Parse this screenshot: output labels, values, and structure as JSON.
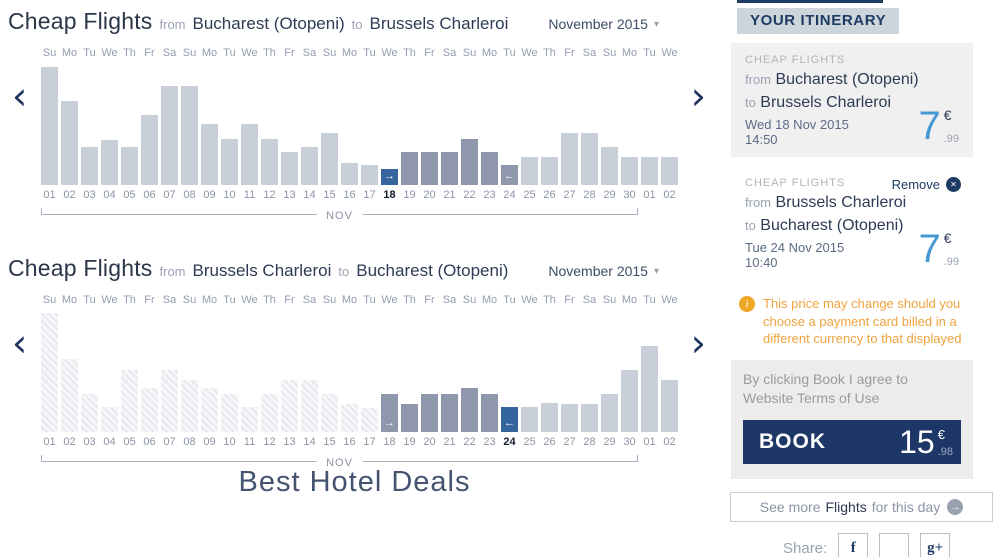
{
  "icons": {
    "prev_chevron": "‹",
    "next_chevron": "›",
    "dropdown_caret": "▾",
    "remove_x": "✕",
    "info_i": "i",
    "arrow_right": "→",
    "arrow_left": "←",
    "facebook_f": "f",
    "google_plus": "g+",
    "see_more_arrow": "→"
  },
  "colors": {
    "bar_light": "#c9cfd9",
    "bar_range": "#8f97ac",
    "bar_selected": "#36649e",
    "price_blue": "#4599d4",
    "navy": "#1d3b63",
    "book_button_bg": "#1d3767",
    "warning_orange": "#f0a33f"
  },
  "chart_data": [
    {
      "type": "bar",
      "header": {
        "title": "Cheap Flights",
        "from_label": "from",
        "from": "Bucharest (Otopeni)",
        "to_label": "to",
        "to": "Brussels Charleroi",
        "month": "November 2015"
      },
      "month_bracket": "NOV",
      "xlabel": "",
      "ylabel": "",
      "value_unit": "relative bar height in px (no numeric price axis shown)",
      "day_labels": [
        "Su",
        "Mo",
        "Tu",
        "We",
        "Th",
        "Fr",
        "Sa",
        "Su",
        "Mo",
        "Tu",
        "We",
        "Th",
        "Fr",
        "Sa",
        "Su",
        "Mo",
        "Tu",
        "We",
        "Th",
        "Fr",
        "Sa",
        "Su",
        "Mo",
        "Tu",
        "We",
        "Th",
        "Fr",
        "Sa",
        "Su",
        "Mo",
        "Tu",
        "We"
      ],
      "categories": [
        "01",
        "02",
        "03",
        "04",
        "05",
        "06",
        "07",
        "08",
        "09",
        "10",
        "11",
        "12",
        "13",
        "14",
        "15",
        "16",
        "17",
        "18",
        "19",
        "20",
        "21",
        "22",
        "23",
        "24",
        "25",
        "26",
        "27",
        "28",
        "29",
        "30",
        "01",
        "02"
      ],
      "values": [
        118,
        84,
        38,
        45,
        38,
        70,
        99,
        99,
        61,
        46,
        61,
        46,
        33,
        38,
        52,
        22,
        20,
        16,
        33,
        33,
        33,
        46,
        33,
        20,
        28,
        28,
        52,
        52,
        38,
        28,
        28,
        28
      ],
      "states": [
        "L",
        "L",
        "L",
        "L",
        "L",
        "L",
        "L",
        "L",
        "L",
        "L",
        "L",
        "L",
        "L",
        "L",
        "L",
        "L",
        "L",
        "S",
        "R",
        "R",
        "R",
        "R",
        "R",
        "R",
        "L",
        "L",
        "L",
        "L",
        "L",
        "L",
        "L",
        "L"
      ],
      "arrows": {
        "17": "right",
        "23": "left"
      },
      "bold_index": 17,
      "selected_departure_date": "18"
    },
    {
      "type": "bar",
      "header": {
        "title": "Cheap Flights",
        "from_label": "from",
        "from": "Brussels Charleroi",
        "to_label": "to",
        "to": "Bucharest (Otopeni)",
        "month": "November 2015"
      },
      "month_bracket": "NOV",
      "xlabel": "",
      "ylabel": "",
      "value_unit": "relative bar height in px (no numeric price axis shown)",
      "day_labels": [
        "Su",
        "Mo",
        "Tu",
        "We",
        "Th",
        "Fr",
        "Sa",
        "Su",
        "Mo",
        "Tu",
        "We",
        "Th",
        "Fr",
        "Sa",
        "Su",
        "Mo",
        "Tu",
        "We",
        "Th",
        "Fr",
        "Sa",
        "Su",
        "Mo",
        "Tu",
        "We",
        "Th",
        "Fr",
        "Sa",
        "Su",
        "Mo",
        "Tu",
        "We"
      ],
      "categories": [
        "01",
        "02",
        "03",
        "04",
        "05",
        "06",
        "07",
        "08",
        "09",
        "10",
        "11",
        "12",
        "13",
        "14",
        "15",
        "16",
        "17",
        "18",
        "19",
        "20",
        "21",
        "22",
        "23",
        "24",
        "25",
        "26",
        "27",
        "28",
        "29",
        "30",
        "01",
        "02"
      ],
      "values": [
        119,
        73,
        38,
        25,
        62,
        44,
        62,
        52,
        44,
        38,
        25,
        38,
        52,
        52,
        38,
        28,
        24,
        38,
        28,
        38,
        38,
        44,
        38,
        25,
        25,
        29,
        28,
        28,
        38,
        62,
        86,
        52
      ],
      "states": [
        "P",
        "P",
        "P",
        "P",
        "P",
        "P",
        "P",
        "P",
        "P",
        "P",
        "P",
        "P",
        "P",
        "P",
        "P",
        "P",
        "P",
        "R",
        "R",
        "R",
        "R",
        "R",
        "R",
        "S",
        "L",
        "L",
        "L",
        "L",
        "L",
        "L",
        "L",
        "L"
      ],
      "arrows": {
        "17": "right",
        "23": "left"
      },
      "bold_index": 23,
      "selected_return_date": "24"
    }
  ],
  "sidebar": {
    "header": "YOUR ITINERARY",
    "cards": [
      {
        "section": "CHEAP FLIGHTS",
        "from_label": "from",
        "from": "Bucharest (Otopeni)",
        "to_label": "to",
        "to": "Brussels Charleroi",
        "date": "Wed 18 Nov 2015",
        "time": "14:50",
        "price_int": "7",
        "currency": "€",
        "price_cents": ".99"
      },
      {
        "section": "CHEAP FLIGHTS",
        "remove_label": "Remove",
        "from_label": "from",
        "from": "Brussels Charleroi",
        "to_label": "to",
        "to": "Bucharest (Otopeni)",
        "date": "Tue 24 Nov 2015",
        "time": "10:40",
        "price_int": "7",
        "currency": "€",
        "price_cents": ".99"
      }
    ],
    "warning": "This price may change should you choose a payment card billed in a different currency to that displayed",
    "terms": "By clicking Book I agree to Website Terms of Use",
    "book": {
      "label": "BOOK",
      "price_int": "15",
      "currency": "€",
      "price_cents": ".98"
    },
    "see_more": {
      "prefix": "See more",
      "highlight": "Flights",
      "suffix": "for this day"
    },
    "share_label": "Share:"
  },
  "footer": {
    "text": "Best Hotel Deals"
  }
}
